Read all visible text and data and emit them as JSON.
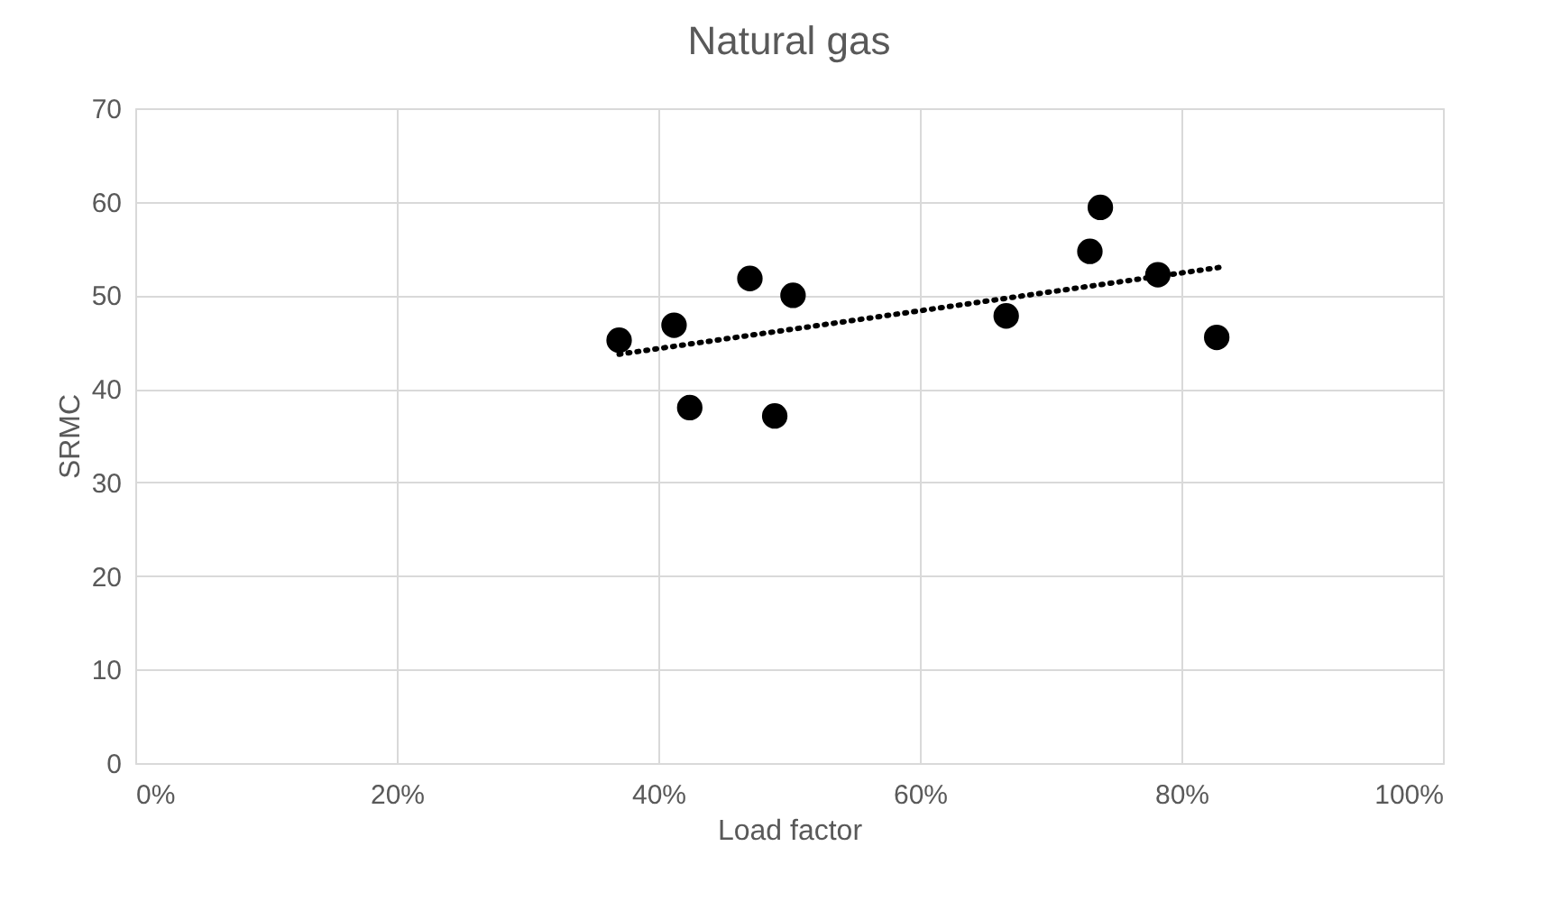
{
  "chart_data": {
    "type": "scatter",
    "title": "Natural gas",
    "xlabel": "Load factor",
    "ylabel": "SRMC",
    "xlim": [
      0,
      1
    ],
    "xticks": [
      {
        "value": 0,
        "label": "0%"
      },
      {
        "value": 0.2,
        "label": "20%"
      },
      {
        "value": 0.4,
        "label": "40%"
      },
      {
        "value": 0.6,
        "label": "60%"
      },
      {
        "value": 0.8,
        "label": "80%"
      },
      {
        "value": 1,
        "label": "100%"
      }
    ],
    "ylim": [
      0,
      70
    ],
    "yticks": [
      0,
      10,
      20,
      30,
      40,
      50,
      60,
      70
    ],
    "grid": true,
    "series": [
      {
        "color": "#000000",
        "marker": "circle",
        "x": [
          0.37,
          0.412,
          0.424,
          0.47,
          0.489,
          0.503,
          0.666,
          0.73,
          0.738,
          0.782,
          0.827
        ],
        "values": [
          45.2,
          46.8,
          38.0,
          51.8,
          37.1,
          50.0,
          47.8,
          54.7,
          59.4,
          52.2,
          45.5
        ]
      },
      {
        "type": "line",
        "color": "#000000",
        "line_style": "dotted",
        "marker": "none",
        "x": [
          0.37,
          0.83
        ],
        "values": [
          43.7,
          53.0
        ]
      }
    ]
  }
}
